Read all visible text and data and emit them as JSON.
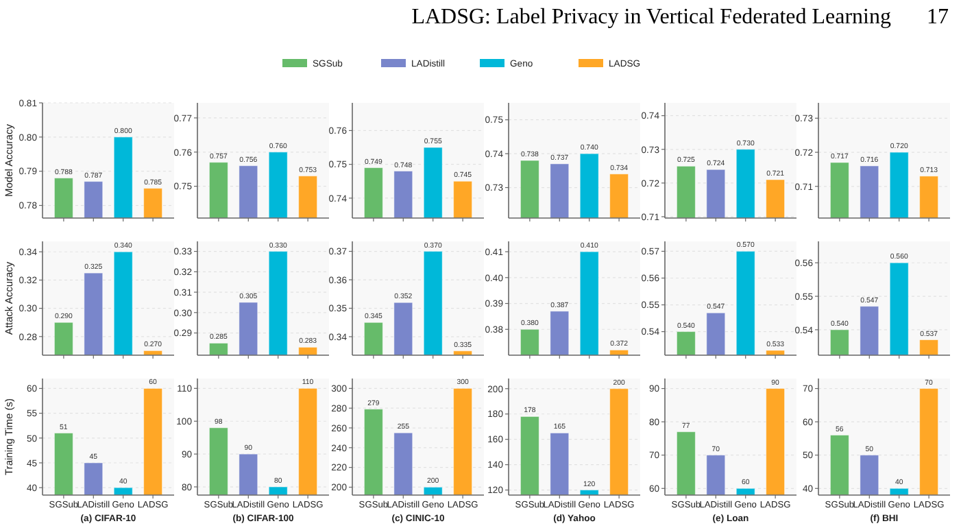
{
  "chart_data": [
    {
      "type": "bar",
      "annotations": [
        "LADSG: Label Privacy in Vertical Federated Learning",
        "17"
      ],
      "legend": "top",
      "ylabel": "Model Accuracy",
      "categories": [
        null
      ],
      "series": [
        {
          "name": "SGSub",
          "color": "#66bb6a",
          "values": [
            0.788
          ],
          "value_labels": [
            "0.788"
          ]
        },
        {
          "name": "LADistill",
          "color": "#7986cb",
          "values": [
            0.787
          ],
          "value_labels": [
            "0.787"
          ]
        },
        {
          "name": "Geno",
          "color": "#00b8d9",
          "values": [
            0.8
          ],
          "value_labels": [
            "0.800"
          ]
        },
        {
          "name": "LADSG",
          "color": "#ffa726",
          "values": [
            0.785
          ],
          "value_labels": [
            "0.785"
          ]
        }
      ],
      "ylim": [
        0.7763,
        0.81
      ],
      "yticks": [
        {
          "value": 0.78,
          "label": "0.78"
        },
        {
          "value": 0.79,
          "label": "0.79"
        },
        {
          "value": 0.8,
          "label": "0.80"
        },
        {
          "value": 0.81,
          "label": "0.81"
        }
      ],
      "grid": "y",
      "tick_labels": "y"
    },
    {
      "type": "bar",
      "categories": [
        null
      ],
      "series": [
        {
          "color": "#66bb6a",
          "values": [
            0.757
          ],
          "value_labels": [
            "0.757"
          ]
        },
        {
          "color": "#7986cb",
          "values": [
            0.756
          ],
          "value_labels": [
            "0.756"
          ]
        },
        {
          "color": "#00b8d9",
          "values": [
            0.76
          ],
          "value_labels": [
            "0.760"
          ]
        },
        {
          "color": "#ffa726",
          "values": [
            0.753
          ],
          "value_labels": [
            "0.753"
          ]
        }
      ],
      "ylim": [
        0.7407,
        0.7744
      ],
      "yticks": [
        {
          "value": 0.75,
          "label": "0.75"
        },
        {
          "value": 0.76,
          "label": "0.76"
        },
        {
          "value": 0.77,
          "label": "0.77"
        }
      ],
      "grid": "y",
      "tick_labels": "y"
    },
    {
      "type": "bar",
      "categories": [
        null
      ],
      "series": [
        {
          "color": "#66bb6a",
          "values": [
            0.749
          ],
          "value_labels": [
            "0.749"
          ]
        },
        {
          "color": "#7986cb",
          "values": [
            0.748
          ],
          "value_labels": [
            "0.748"
          ]
        },
        {
          "color": "#00b8d9",
          "values": [
            0.755
          ],
          "value_labels": [
            "0.755"
          ]
        },
        {
          "color": "#ffa726",
          "values": [
            0.745
          ],
          "value_labels": [
            "0.745"
          ]
        }
      ],
      "ylim": [
        0.7341,
        0.7682
      ],
      "yticks": [
        {
          "value": 0.74,
          "label": "0.74"
        },
        {
          "value": 0.75,
          "label": "0.75"
        },
        {
          "value": 0.76,
          "label": "0.76"
        }
      ],
      "grid": "y",
      "tick_labels": "y"
    },
    {
      "type": "bar",
      "categories": [
        null
      ],
      "series": [
        {
          "color": "#66bb6a",
          "values": [
            0.738
          ],
          "value_labels": [
            "0.738"
          ]
        },
        {
          "color": "#7986cb",
          "values": [
            0.737
          ],
          "value_labels": [
            "0.737"
          ]
        },
        {
          "color": "#00b8d9",
          "values": [
            0.74
          ],
          "value_labels": [
            "0.740"
          ]
        },
        {
          "color": "#ffa726",
          "values": [
            0.734
          ],
          "value_labels": [
            "0.734"
          ]
        }
      ],
      "ylim": [
        0.721,
        0.755
      ],
      "yticks": [
        {
          "value": 0.73,
          "label": "0.73"
        },
        {
          "value": 0.74,
          "label": "0.74"
        },
        {
          "value": 0.75,
          "label": "0.75"
        }
      ],
      "grid": "y",
      "tick_labels": "y"
    },
    {
      "type": "bar",
      "categories": [
        null
      ],
      "series": [
        {
          "color": "#66bb6a",
          "values": [
            0.725
          ],
          "value_labels": [
            "0.725"
          ]
        },
        {
          "color": "#7986cb",
          "values": [
            0.724
          ],
          "value_labels": [
            "0.724"
          ]
        },
        {
          "color": "#00b8d9",
          "values": [
            0.73
          ],
          "value_labels": [
            "0.730"
          ]
        },
        {
          "color": "#ffa726",
          "values": [
            0.721
          ],
          "value_labels": [
            "0.721"
          ]
        }
      ],
      "ylim": [
        0.7096,
        0.7438
      ],
      "yticks": [
        {
          "value": 0.71,
          "label": "0.71"
        },
        {
          "value": 0.72,
          "label": "0.72"
        },
        {
          "value": 0.73,
          "label": "0.73"
        },
        {
          "value": 0.74,
          "label": "0.74"
        }
      ],
      "grid": "y",
      "tick_labels": "y"
    },
    {
      "type": "bar",
      "categories": [
        null
      ],
      "series": [
        {
          "color": "#66bb6a",
          "values": [
            0.717
          ],
          "value_labels": [
            "0.717"
          ]
        },
        {
          "color": "#7986cb",
          "values": [
            0.716
          ],
          "value_labels": [
            "0.716"
          ]
        },
        {
          "color": "#00b8d9",
          "values": [
            0.72
          ],
          "value_labels": [
            "0.720"
          ]
        },
        {
          "color": "#ffa726",
          "values": [
            0.713
          ],
          "value_labels": [
            "0.713"
          ]
        }
      ],
      "ylim": [
        0.7007,
        0.7345
      ],
      "yticks": [
        {
          "value": 0.71,
          "label": "0.71"
        },
        {
          "value": 0.72,
          "label": "0.72"
        },
        {
          "value": 0.73,
          "label": "0.73"
        }
      ],
      "grid": "y",
      "tick_labels": "y"
    },
    {
      "type": "bar",
      "ylabel": "Attack Accuracy",
      "categories": [
        null
      ],
      "series": [
        {
          "color": "#66bb6a",
          "values": [
            0.29
          ],
          "value_labels": [
            "0.290"
          ]
        },
        {
          "color": "#7986cb",
          "values": [
            0.325
          ],
          "value_labels": [
            "0.325"
          ]
        },
        {
          "color": "#00b8d9",
          "values": [
            0.34
          ],
          "value_labels": [
            "0.340"
          ]
        },
        {
          "color": "#ffa726",
          "values": [
            0.27
          ],
          "value_labels": [
            "0.270"
          ]
        }
      ],
      "ylim": [
        0.2668,
        0.3474
      ],
      "yticks": [
        {
          "value": 0.28,
          "label": "0.28"
        },
        {
          "value": 0.3,
          "label": "0.30"
        },
        {
          "value": 0.32,
          "label": "0.32"
        },
        {
          "value": 0.34,
          "label": "0.34"
        }
      ],
      "grid": "y",
      "tick_labels": "y"
    },
    {
      "type": "bar",
      "categories": [
        null
      ],
      "series": [
        {
          "color": "#66bb6a",
          "values": [
            0.285
          ],
          "value_labels": [
            "0.285"
          ]
        },
        {
          "color": "#7986cb",
          "values": [
            0.305
          ],
          "value_labels": [
            "0.305"
          ]
        },
        {
          "color": "#00b8d9",
          "values": [
            0.33
          ],
          "value_labels": [
            "0.330"
          ]
        },
        {
          "color": "#ffa726",
          "values": [
            0.283
          ],
          "value_labels": [
            "0.283"
          ]
        }
      ],
      "ylim": [
        0.2791,
        0.3349
      ],
      "yticks": [
        {
          "value": 0.29,
          "label": "0.29"
        },
        {
          "value": 0.3,
          "label": "0.30"
        },
        {
          "value": 0.31,
          "label": "0.31"
        },
        {
          "value": 0.32,
          "label": "0.32"
        },
        {
          "value": 0.33,
          "label": "0.33"
        }
      ],
      "grid": "y",
      "tick_labels": "y"
    },
    {
      "type": "bar",
      "categories": [
        null
      ],
      "series": [
        {
          "color": "#66bb6a",
          "values": [
            0.345
          ],
          "value_labels": [
            "0.345"
          ]
        },
        {
          "color": "#7986cb",
          "values": [
            0.352
          ],
          "value_labels": [
            "0.352"
          ]
        },
        {
          "color": "#00b8d9",
          "values": [
            0.37
          ],
          "value_labels": [
            "0.370"
          ]
        },
        {
          "color": "#ffa726",
          "values": [
            0.335
          ],
          "value_labels": [
            "0.335"
          ]
        }
      ],
      "ylim": [
        0.3335,
        0.3735
      ],
      "yticks": [
        {
          "value": 0.34,
          "label": "0.34"
        },
        {
          "value": 0.35,
          "label": "0.35"
        },
        {
          "value": 0.36,
          "label": "0.36"
        },
        {
          "value": 0.37,
          "label": "0.37"
        }
      ],
      "grid": "y",
      "tick_labels": "y"
    },
    {
      "type": "bar",
      "categories": [
        null
      ],
      "series": [
        {
          "color": "#66bb6a",
          "values": [
            0.38
          ],
          "value_labels": [
            "0.380"
          ]
        },
        {
          "color": "#7986cb",
          "values": [
            0.387
          ],
          "value_labels": [
            "0.387"
          ]
        },
        {
          "color": "#00b8d9",
          "values": [
            0.41
          ],
          "value_labels": [
            "0.410"
          ]
        },
        {
          "color": "#ffa726",
          "values": [
            0.372
          ],
          "value_labels": [
            "0.372"
          ]
        }
      ],
      "ylim": [
        0.37,
        0.414
      ],
      "yticks": [
        {
          "value": 0.38,
          "label": "0.38"
        },
        {
          "value": 0.39,
          "label": "0.39"
        },
        {
          "value": 0.4,
          "label": "0.40"
        },
        {
          "value": 0.41,
          "label": "0.41"
        }
      ],
      "grid": "y",
      "tick_labels": "y"
    },
    {
      "type": "bar",
      "categories": [
        null
      ],
      "series": [
        {
          "color": "#66bb6a",
          "values": [
            0.54
          ],
          "value_labels": [
            "0.540"
          ]
        },
        {
          "color": "#7986cb",
          "values": [
            0.547
          ],
          "value_labels": [
            "0.547"
          ]
        },
        {
          "color": "#00b8d9",
          "values": [
            0.57
          ],
          "value_labels": [
            "0.570"
          ]
        },
        {
          "color": "#ffa726",
          "values": [
            0.533
          ],
          "value_labels": [
            "0.533"
          ]
        }
      ],
      "ylim": [
        0.5312,
        0.5737
      ],
      "yticks": [
        {
          "value": 0.54,
          "label": "0.54"
        },
        {
          "value": 0.55,
          "label": "0.55"
        },
        {
          "value": 0.56,
          "label": "0.56"
        },
        {
          "value": 0.57,
          "label": "0.57"
        }
      ],
      "grid": "y",
      "tick_labels": "y"
    },
    {
      "type": "bar",
      "categories": [
        null
      ],
      "series": [
        {
          "color": "#66bb6a",
          "values": [
            0.54
          ],
          "value_labels": [
            "0.540"
          ]
        },
        {
          "color": "#7986cb",
          "values": [
            0.547
          ],
          "value_labels": [
            "0.547"
          ]
        },
        {
          "color": "#00b8d9",
          "values": [
            0.56
          ],
          "value_labels": [
            "0.560"
          ]
        },
        {
          "color": "#ffa726",
          "values": [
            0.537
          ],
          "value_labels": [
            "0.537"
          ]
        }
      ],
      "ylim": [
        0.5324,
        0.5664
      ],
      "yticks": [
        {
          "value": 0.54,
          "label": "0.54"
        },
        {
          "value": 0.55,
          "label": "0.55"
        },
        {
          "value": 0.56,
          "label": "0.56"
        }
      ],
      "grid": "y",
      "tick_labels": "y"
    },
    {
      "type": "bar",
      "ylabel": "Training Time (s)",
      "xlabel": "(a) CIFAR-10",
      "categories": [
        null
      ],
      "series": [
        {
          "name": "SGSub",
          "color": "#66bb6a",
          "values": [
            51
          ]
        },
        {
          "name": "LADistill",
          "color": "#7986cb",
          "values": [
            45
          ]
        },
        {
          "name": "Geno",
          "color": "#00b8d9",
          "values": [
            40
          ]
        },
        {
          "name": "LADSG",
          "color": "#ffa726",
          "values": [
            60
          ]
        }
      ],
      "data_labels": true,
      "ylim": [
        38.5,
        62
      ],
      "yticks": [
        40,
        45,
        50,
        55,
        60
      ],
      "grid": "y"
    },
    {
      "type": "bar",
      "xlabel": "(b) CIFAR-100",
      "categories": [
        null
      ],
      "series": [
        {
          "name": "SGSub",
          "color": "#66bb6a",
          "values": [
            98
          ]
        },
        {
          "name": "LADistill",
          "color": "#7986cb",
          "values": [
            90
          ]
        },
        {
          "name": "Geno",
          "color": "#00b8d9",
          "values": [
            80
          ]
        },
        {
          "name": "LADSG",
          "color": "#ffa726",
          "values": [
            110
          ]
        }
      ],
      "data_labels": true,
      "ylim": [
        77.5,
        113
      ],
      "yticks": [
        80,
        90,
        100,
        110
      ],
      "grid": "y"
    },
    {
      "type": "bar",
      "xlabel": "(c) CINIC-10",
      "categories": [
        null
      ],
      "series": [
        {
          "name": "SGSub",
          "color": "#66bb6a",
          "values": [
            279
          ]
        },
        {
          "name": "LADistill",
          "color": "#7986cb",
          "values": [
            255
          ]
        },
        {
          "name": "Geno",
          "color": "#00b8d9",
          "values": [
            200
          ]
        },
        {
          "name": "LADSG",
          "color": "#ffa726",
          "values": [
            300
          ]
        }
      ],
      "data_labels": true,
      "ylim": [
        192,
        310
      ],
      "yticks": [
        200,
        220,
        240,
        260,
        280,
        300
      ],
      "grid": "y"
    },
    {
      "type": "bar",
      "xlabel": "(d) Yahoo",
      "categories": [
        null
      ],
      "series": [
        {
          "name": "SGSub",
          "color": "#66bb6a",
          "values": [
            178
          ]
        },
        {
          "name": "LADistill",
          "color": "#7986cb",
          "values": [
            165
          ]
        },
        {
          "name": "Geno",
          "color": "#00b8d9",
          "values": [
            120
          ]
        },
        {
          "name": "LADSG",
          "color": "#ffa726",
          "values": [
            200
          ]
        }
      ],
      "data_labels": true,
      "ylim": [
        116,
        208
      ],
      "yticks": [
        120,
        140,
        160,
        180,
        200
      ],
      "grid": "y"
    },
    {
      "type": "bar",
      "xlabel": "(e) Loan",
      "categories": [
        null
      ],
      "series": [
        {
          "name": "SGSub",
          "color": "#66bb6a",
          "values": [
            77
          ]
        },
        {
          "name": "LADistill",
          "color": "#7986cb",
          "values": [
            70
          ]
        },
        {
          "name": "Geno",
          "color": "#00b8d9",
          "values": [
            60
          ]
        },
        {
          "name": "LADSG",
          "color": "#ffa726",
          "values": [
            90
          ]
        }
      ],
      "data_labels": true,
      "ylim": [
        58,
        93
      ],
      "yticks": [
        60,
        70,
        80,
        90
      ],
      "grid": "y"
    },
    {
      "type": "bar",
      "xlabel": "(f) BHI",
      "categories": [
        null
      ],
      "series": [
        {
          "name": "SGSub",
          "color": "#66bb6a",
          "values": [
            56
          ]
        },
        {
          "name": "LADistill",
          "color": "#7986cb",
          "values": [
            50
          ]
        },
        {
          "name": "Geno",
          "color": "#00b8d9",
          "values": [
            40
          ]
        },
        {
          "name": "LADSG",
          "color": "#ffa726",
          "values": [
            70
          ]
        }
      ],
      "data_labels": true,
      "ylim": [
        38,
        73
      ],
      "yticks": [
        40,
        50,
        60,
        70
      ],
      "grid": "y"
    }
  ]
}
